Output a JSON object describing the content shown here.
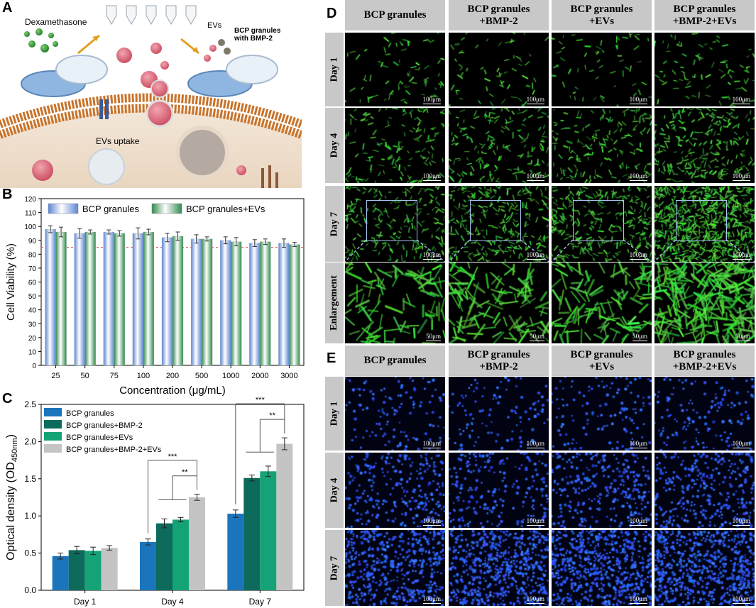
{
  "panels": {
    "A": "A",
    "B": "B",
    "C": "C",
    "D": "D",
    "E": "E"
  },
  "schematic": {
    "dexamethasone": "Dexamethasone",
    "evs": "EVs",
    "bcp_bmp2": "BCP granules\nwith BMP-2",
    "evs_uptake": "EVs uptake"
  },
  "colors": {
    "blue": "#1b75bc",
    "dark_teal": "#0d6b5c",
    "green": "#14a276",
    "gray": "#c4c4c4",
    "membrane": "#c8732a",
    "cell_green": "#43d63c",
    "nuclei_blue": "#2f5bff"
  },
  "chart_data": [
    {
      "id": "B",
      "type": "bar",
      "categories": [
        "25",
        "50",
        "75",
        "100",
        "200",
        "500",
        "1000",
        "2000",
        "3000"
      ],
      "series": [
        {
          "name": "BCP granules",
          "values": [
            98,
            95,
            96,
            95,
            92,
            91,
            90,
            88,
            88
          ],
          "errors": [
            2.5,
            3.5,
            1.5,
            4,
            3,
            3,
            2.5,
            2.5,
            3
          ]
        },
        {
          "name": "BCP granules+EVs",
          "values": [
            96,
            96,
            95,
            96,
            93,
            91,
            89,
            89,
            87
          ],
          "errors": [
            3.5,
            1.5,
            2,
            2,
            3,
            1.5,
            3,
            2,
            1.5
          ]
        }
      ],
      "xlabel": "Concentration (μg/mL)",
      "ylabel": "Cell Viability (%)",
      "ylim": [
        0,
        120
      ],
      "yticks": [
        "0",
        "10",
        "20",
        "30",
        "40",
        "50",
        "60",
        "70",
        "80",
        "90",
        "100",
        "110",
        "120"
      ],
      "reference_line": 85,
      "legend_position": "top"
    },
    {
      "id": "C",
      "type": "bar",
      "categories": [
        "Day 1",
        "Day 4",
        "Day 7"
      ],
      "series": [
        {
          "name": "BCP granules",
          "values": [
            0.46,
            0.65,
            1.03
          ],
          "errors": [
            0.04,
            0.04,
            0.05
          ]
        },
        {
          "name": "BCP granules+BMP-2",
          "values": [
            0.54,
            0.9,
            1.51
          ],
          "errors": [
            0.05,
            0.06,
            0.04
          ]
        },
        {
          "name": "BCP granules+EVs",
          "values": [
            0.53,
            0.95,
            1.6
          ],
          "errors": [
            0.05,
            0.03,
            0.07
          ]
        },
        {
          "name": "BCP granules+BMP-2+EVs",
          "values": [
            0.57,
            1.25,
            1.97
          ],
          "errors": [
            0.03,
            0.04,
            0.08
          ]
        }
      ],
      "xlabel": "",
      "ylabel_main": "Optical density (OD",
      "ylabel_sub": "450nm",
      "ylabel_end": ")",
      "ylim": [
        0,
        2.5
      ],
      "yticks": [
        "0.0",
        "0.5",
        "1.0",
        "1.5",
        "2.0",
        "2.5"
      ],
      "significance": [
        "***",
        "**",
        "***",
        "**"
      ],
      "legend_position": "top-left"
    }
  ],
  "microscopy": {
    "columns": [
      "BCP granules",
      "BCP granules\n+BMP-2",
      "BCP granules\n+EVs",
      "BCP granules\n+BMP-2+EVs"
    ],
    "rows_D": [
      "Day 1",
      "Day 4",
      "Day 7",
      "Enlargement"
    ],
    "rows_E": [
      "Day 1",
      "Day 4",
      "Day 7"
    ],
    "scale_100": "100μm",
    "scale_50": "50μm"
  }
}
